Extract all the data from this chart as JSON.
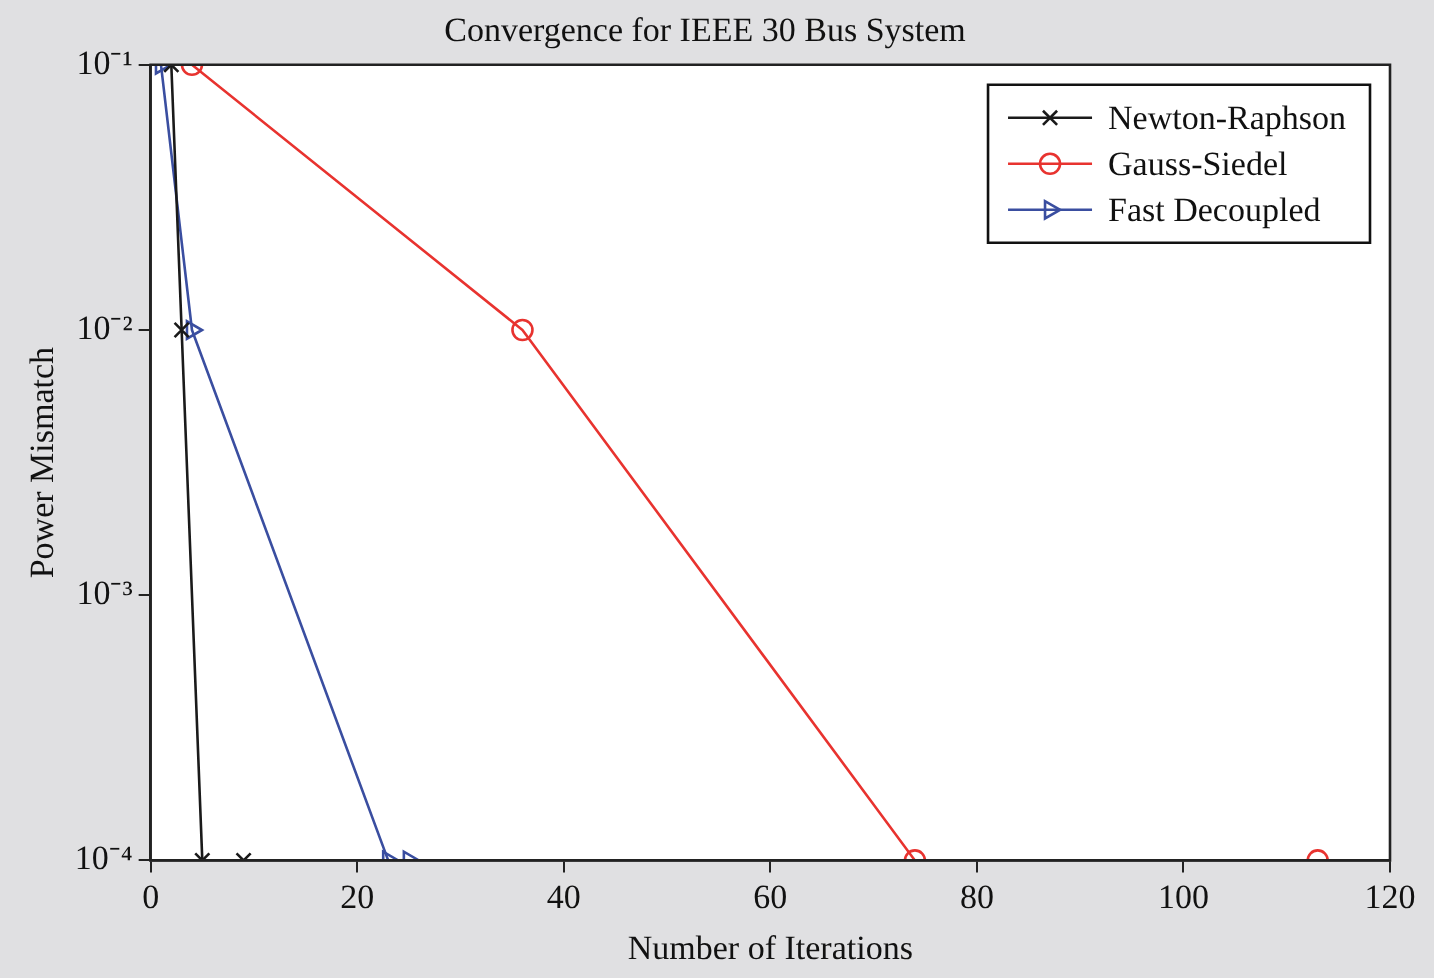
{
  "chart_data": {
    "type": "line",
    "title": "Convergence for IEEE 30 Bus System",
    "xlabel": "Number of Iterations",
    "ylabel": "Power Mismatch",
    "log": "y",
    "legend": "top right",
    "xlim": [
      0,
      120
    ],
    "xticks": [
      0,
      20,
      40,
      60,
      80,
      100,
      120
    ],
    "ylim": [
      0.0001,
      0.1
    ],
    "yticks": [
      {
        "value": 0.0001,
        "label": "10⁻⁴"
      },
      {
        "value": 0.001,
        "label": "10⁻³"
      },
      {
        "value": 0.01,
        "label": "10⁻²"
      },
      {
        "value": 0.1,
        "label": "10⁻¹"
      }
    ],
    "series": [
      {
        "name": "Newton-Raphson",
        "color": "#1a1a1a",
        "marker": "cross",
        "x": [
          2,
          3,
          5,
          9
        ],
        "values": [
          0.1,
          0.01,
          0.0001,
          0.0001
        ]
      },
      {
        "name": "Gauss-Siedel",
        "color": "#e8332f",
        "marker": "circle",
        "x": [
          4,
          36,
          74,
          113
        ],
        "values": [
          0.1,
          0.01,
          0.0001,
          0.0001
        ]
      },
      {
        "name": "Fast Decoupled",
        "color": "#3a4ea0",
        "marker": "triangle",
        "x": [
          1,
          4,
          23,
          25
        ],
        "values": [
          0.1,
          0.01,
          0.0001,
          0.0001
        ]
      }
    ]
  }
}
